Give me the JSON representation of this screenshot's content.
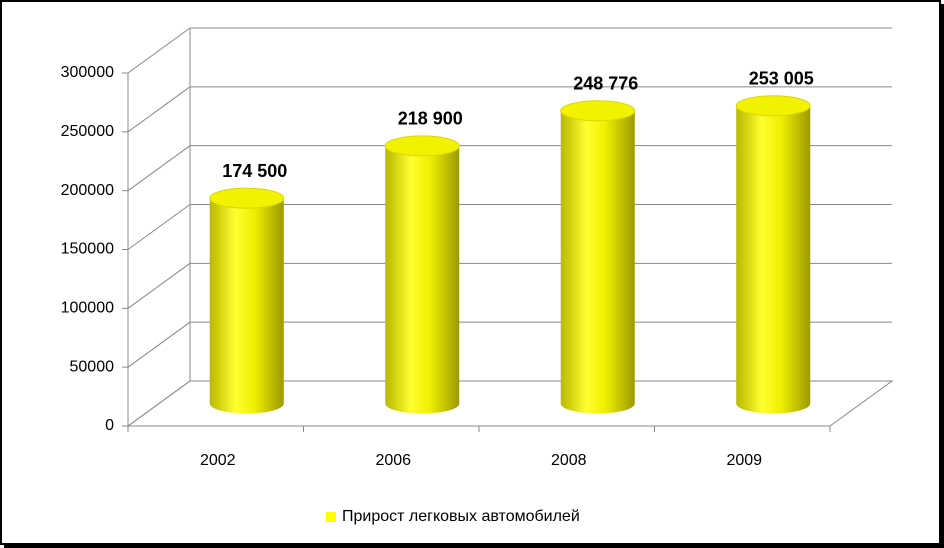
{
  "chart_data": {
    "type": "bar3d",
    "categories": [
      "2002",
      "2006",
      "2008",
      "2009"
    ],
    "series": [
      {
        "name": "Прирост легковых автомобилей",
        "color": "#ffff00",
        "values": [
          174500,
          218900,
          248776,
          253005
        ],
        "value_labels": [
          "174 500",
          "218 900",
          "248 776",
          "253 005"
        ]
      }
    ],
    "ylim": [
      0,
      300000
    ],
    "yticks": [
      0,
      50000,
      100000,
      150000,
      200000,
      250000,
      300000
    ],
    "grid": true,
    "legend": "bottom"
  }
}
